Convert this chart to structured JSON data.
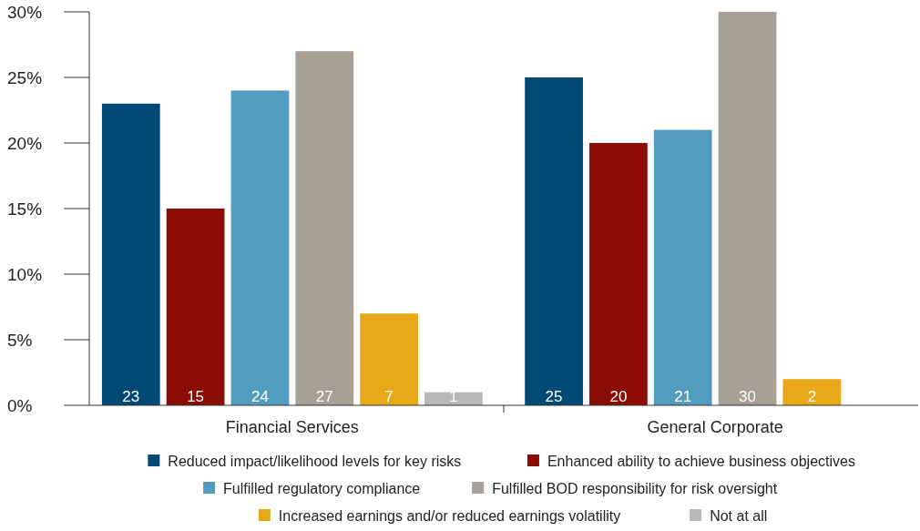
{
  "chart_data": {
    "type": "bar",
    "categories": [
      "Financial Services",
      "General Corporate"
    ],
    "series": [
      {
        "name": "Reduced impact/likelihood levels for key risks",
        "color": "#004a75",
        "values": [
          23,
          25
        ]
      },
      {
        "name": "Enhanced ability to achieve business objectives",
        "color": "#8b0c03",
        "values": [
          15,
          20
        ]
      },
      {
        "name": "Fulfilled regulatory compliance",
        "color": "#529dbf",
        "values": [
          24,
          21
        ]
      },
      {
        "name": "Fulfilled BOD responsibility for risk oversight",
        "color": "#a89f95",
        "values": [
          27,
          30
        ]
      },
      {
        "name": "Increased earnings and/or reduced earnings volatility",
        "color": "#e6a817",
        "values": [
          7,
          2
        ]
      },
      {
        "name": "Not at all",
        "color": "#b6b8ba",
        "values": [
          1,
          null
        ]
      }
    ],
    "ylim": [
      0,
      30
    ],
    "yticks": [
      {
        "value": 0,
        "label": "0%"
      },
      {
        "value": 5,
        "label": "5%"
      },
      {
        "value": 10,
        "label": "10%"
      },
      {
        "value": 15,
        "label": "15%"
      },
      {
        "value": 20,
        "label": "20%"
      },
      {
        "value": 25,
        "label": "25%"
      },
      {
        "value": 30,
        "label": "30%"
      }
    ],
    "grid": false,
    "legend": "bottom",
    "data_labels": true
  }
}
